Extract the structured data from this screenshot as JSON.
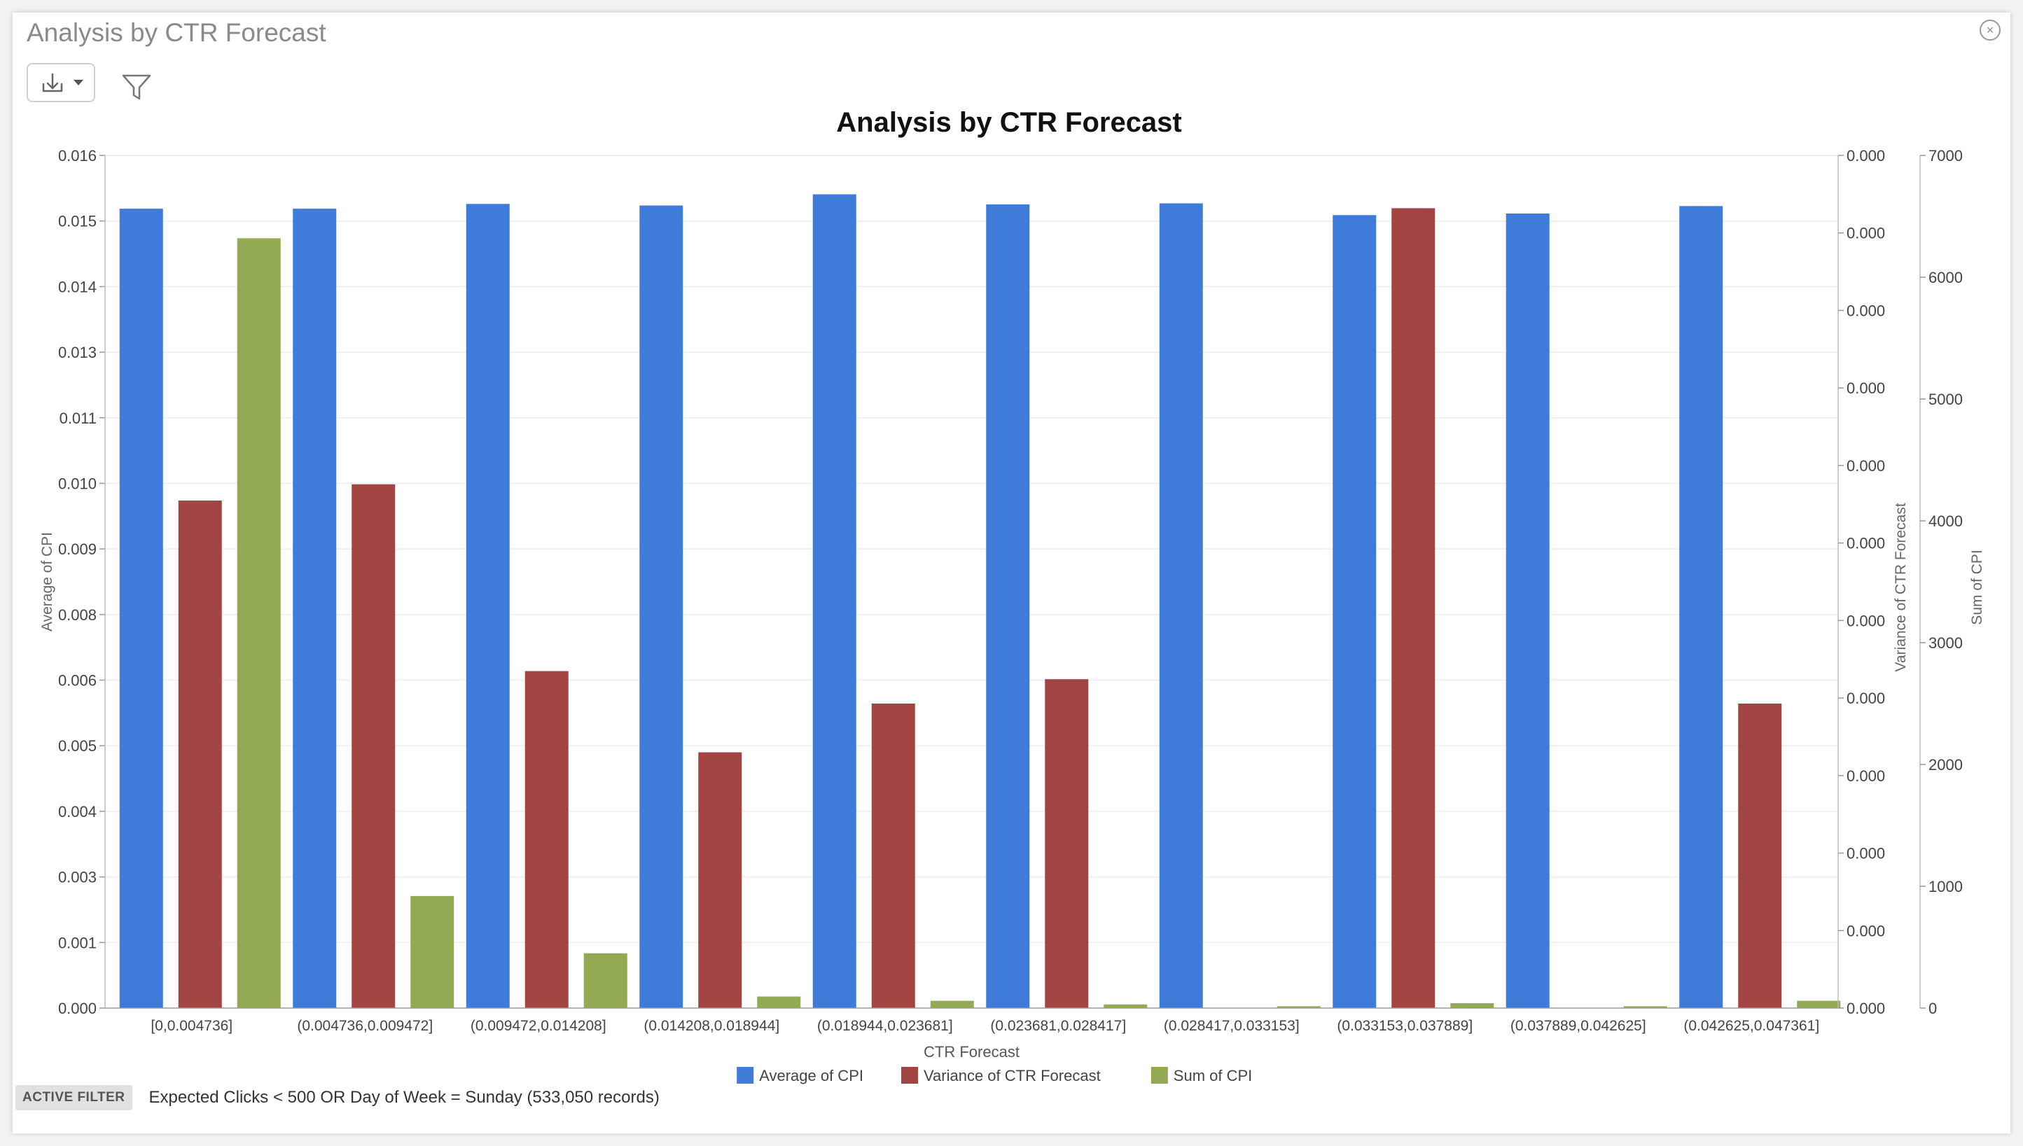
{
  "window": {
    "title": "Analysis by CTR Forecast",
    "close_icon": "close-icon",
    "download_icon": "download-icon",
    "dropdown_icon": "caret-down-icon",
    "filter_icon": "filter-icon"
  },
  "chart_data": {
    "type": "bar",
    "title": "Analysis by CTR Forecast",
    "xlabel": "CTR Forecast",
    "categories": [
      "[0,0.004736]",
      "(0.004736,0.009472]",
      "(0.009472,0.014208]",
      "(0.014208,0.018944]",
      "(0.018944,0.023681]",
      "(0.023681,0.028417]",
      "(0.028417,0.033153]",
      "(0.033153,0.037889]",
      "(0.037889,0.042625]",
      "(0.042625,0.047361]"
    ],
    "series": [
      {
        "name": "Average of CPI",
        "axis": "left",
        "color": "#3f7bd9",
        "values": [
          0.015,
          0.015,
          0.01509,
          0.01506,
          0.01527,
          0.01508,
          0.0151,
          0.01488,
          0.01491,
          0.01505
        ]
      },
      {
        "name": "Variance of CTR Forecast",
        "axis": "right1",
        "color": "#a24542",
        "values": [
          1.25e-08,
          1.29e-08,
          8.3e-09,
          6.3e-09,
          7.5e-09,
          8.1e-09,
          0.0,
          1.97e-08,
          0.0,
          7.5e-09
        ]
      },
      {
        "name": "Sum of CPI",
        "axis": "right2",
        "color": "#93aa52",
        "values": [
          6320,
          920,
          450,
          95,
          60,
          30,
          15,
          40,
          15,
          60
        ]
      }
    ],
    "axes": {
      "left": {
        "label": "Average of CPI",
        "ylim": [
          0,
          0.016
        ],
        "ticks": [
          "0.000",
          "0.001",
          "0.003",
          "0.004",
          "0.005",
          "0.006",
          "0.008",
          "0.009",
          "0.010",
          "0.011",
          "0.013",
          "0.014",
          "0.015",
          "0.016"
        ]
      },
      "right1": {
        "label": "Variance of CTR Forecast",
        "ylim": [
          0,
          2.1e-08
        ],
        "ticks": [
          "0.000",
          "0.000",
          "0.000",
          "0.000",
          "0.000",
          "0.000",
          "0.000",
          "0.000",
          "0.000",
          "0.000",
          "0.000",
          "0.000"
        ]
      },
      "right2": {
        "label": "Sum of CPI",
        "ylim": [
          0,
          7000
        ],
        "ticks": [
          "0",
          "1000",
          "2000",
          "3000",
          "4000",
          "5000",
          "6000",
          "7000"
        ]
      }
    },
    "grid": true,
    "legend": "bottom-center"
  },
  "footer": {
    "badge": "ACTIVE FILTER",
    "filter_text": "Expected Clicks < 500 OR Day of Week = Sunday (533,050 records)"
  }
}
